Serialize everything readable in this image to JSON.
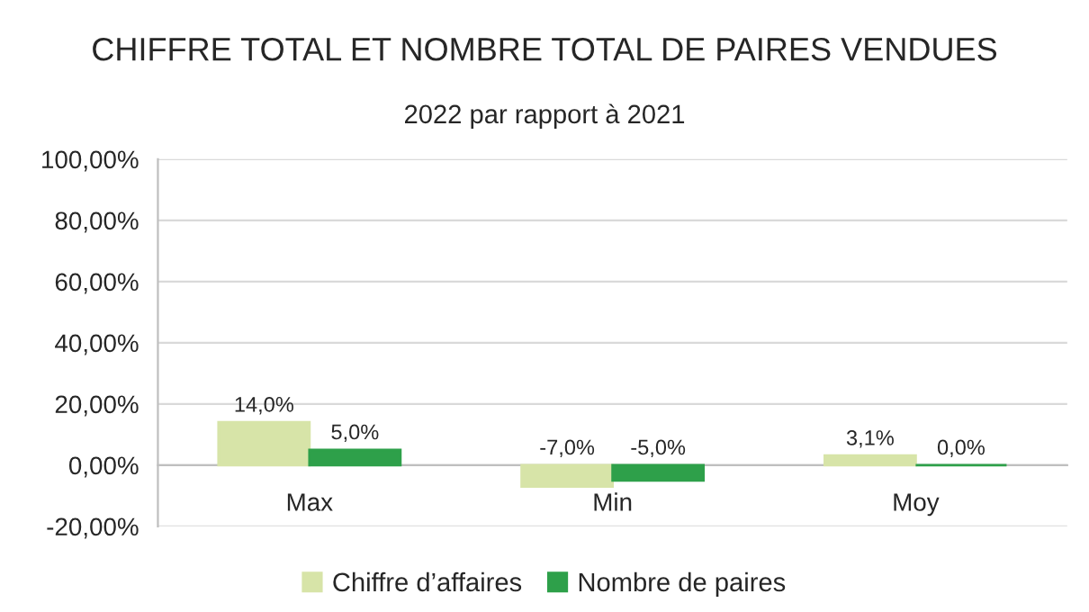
{
  "chart_data": {
    "type": "bar",
    "title": "CHIFFRE TOTAL ET NOMBRE TOTAL DE PAIRES VENDUES",
    "subtitle": "2022 par rapport à 2021",
    "categories": [
      "Max",
      "Min",
      "Moy"
    ],
    "series": [
      {
        "name": "Chiffre d’affaires",
        "color": "#d7e4a8",
        "values": [
          14.0,
          -7.0,
          3.1
        ],
        "value_labels": [
          "14,0%",
          "-7,0%",
          "3,1%"
        ]
      },
      {
        "name": "Nombre de paires",
        "color": "#2ea04a",
        "values": [
          5.0,
          -5.0,
          0.0
        ],
        "value_labels": [
          "5,0%",
          "-5,0%",
          "0,0%"
        ]
      }
    ],
    "ylim": [
      -20,
      100
    ],
    "yticks": [
      {
        "value": -20,
        "label": "-20,00%"
      },
      {
        "value": 0,
        "label": "0,00%"
      },
      {
        "value": 20,
        "label": "20,00%"
      },
      {
        "value": 40,
        "label": "40,00%"
      },
      {
        "value": 60,
        "label": "60,00%"
      },
      {
        "value": 80,
        "label": "80,00%"
      },
      {
        "value": 100,
        "label": "100,00%"
      }
    ],
    "grid": "y",
    "legend": "bottom"
  }
}
